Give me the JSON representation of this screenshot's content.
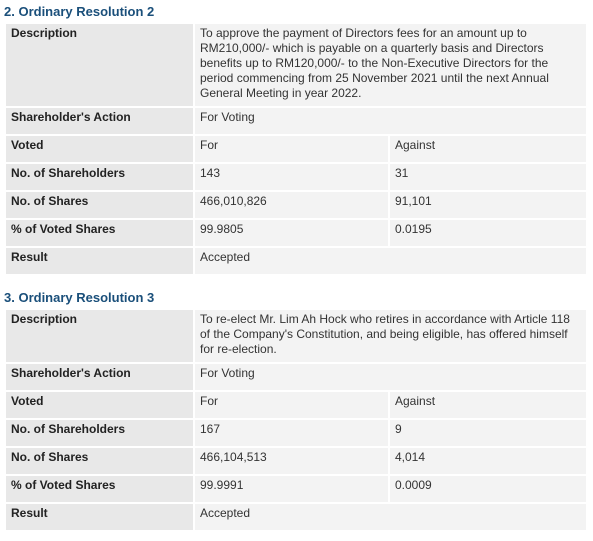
{
  "resolutions": [
    {
      "title": "2. Ordinary Resolution 2",
      "rows": {
        "description_label": "Description",
        "description_value": "To approve the payment of Directors fees for an amount up to RM210,000/- which is payable on a quarterly basis and Directors benefits up to RM120,000/- to the Non-Executive Directors for the period commencing from 25 November 2021 until the next Annual General Meeting in year 2022.",
        "action_label": "Shareholder's Action",
        "action_value": "For Voting",
        "voted_label": "Voted",
        "voted_for": "For",
        "voted_against": "Against",
        "shareholders_label": "No. of Shareholders",
        "shareholders_for": "143",
        "shareholders_against": "31",
        "shares_label": "No. of Shares",
        "shares_for": "466,010,826",
        "shares_against": "91,101",
        "pct_label": "% of Voted Shares",
        "pct_for": "99.9805",
        "pct_against": "0.0195",
        "result_label": "Result",
        "result_value": "Accepted"
      }
    },
    {
      "title": "3. Ordinary Resolution 3",
      "rows": {
        "description_label": "Description",
        "description_value": "To re-elect Mr. Lim Ah Hock who retires in accordance with Article 118 of the Company's Constitution, and being eligible, has offered himself for re-election.",
        "action_label": "Shareholder's Action",
        "action_value": "For Voting",
        "voted_label": "Voted",
        "voted_for": "For",
        "voted_against": "Against",
        "shareholders_label": "No. of Shareholders",
        "shareholders_for": "167",
        "shareholders_against": "9",
        "shares_label": "No. of Shares",
        "shares_for": "466,104,513",
        "shares_against": "4,014",
        "pct_label": "% of Voted Shares",
        "pct_for": "99.9991",
        "pct_against": "0.0009",
        "result_label": "Result",
        "result_value": "Accepted"
      }
    }
  ]
}
